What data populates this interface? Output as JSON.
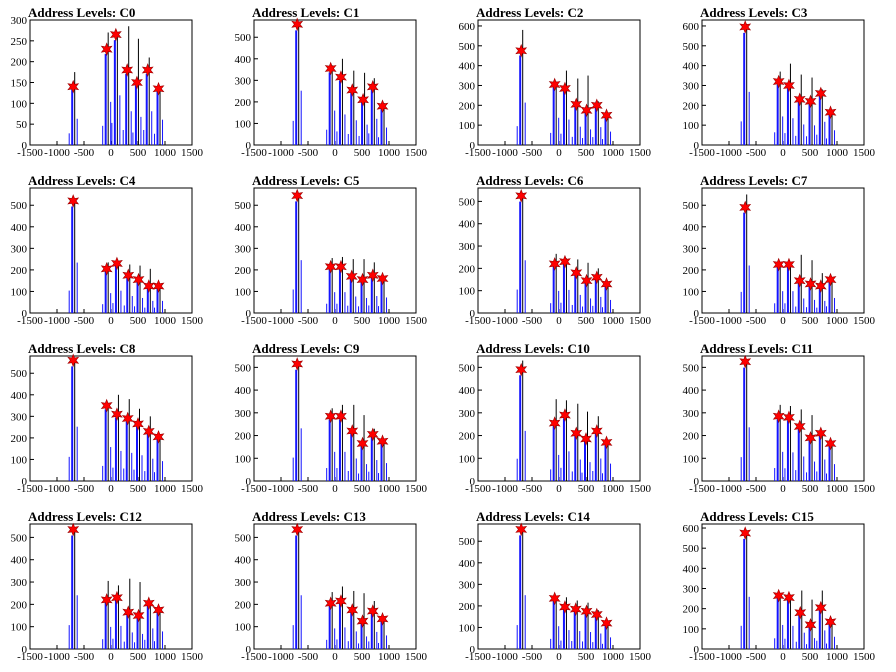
{
  "colors": {
    "histogram": "#1414ff",
    "peak_marker": "#ff0000",
    "frame": "#000000"
  },
  "chart_data": [
    {
      "type": "histogram",
      "title": "Address Levels: C0",
      "x_ticks": [
        -1500,
        -1000,
        -500,
        0,
        500,
        1000,
        1500
      ],
      "y_ticks": [
        0,
        50,
        100,
        150,
        200,
        250,
        300
      ],
      "xlim": [
        -1500,
        1500
      ],
      "ylim": [
        0,
        300
      ],
      "peaks": [
        {
          "x": -700,
          "y": 140,
          "h": 175
        },
        {
          "x": -80,
          "y": 230,
          "h": 270
        },
        {
          "x": 90,
          "y": 265,
          "h": 270
        },
        {
          "x": 300,
          "y": 180,
          "h": 285
        },
        {
          "x": 480,
          "y": 150,
          "h": 255
        },
        {
          "x": 680,
          "y": 180,
          "h": 210
        },
        {
          "x": 880,
          "y": 135,
          "h": 140
        }
      ]
    },
    {
      "type": "histogram",
      "title": "Address Levels: C1",
      "x_ticks": [
        -1500,
        -1000,
        -500,
        0,
        500,
        1000,
        1500
      ],
      "y_ticks": [
        0,
        100,
        200,
        300,
        400,
        500
      ],
      "xlim": [
        -1500,
        1500
      ],
      "ylim": [
        0,
        580
      ],
      "peaks": [
        {
          "x": -700,
          "y": 560,
          "h": 570
        },
        {
          "x": -80,
          "y": 355,
          "h": 370
        },
        {
          "x": 110,
          "y": 315,
          "h": 400
        },
        {
          "x": 320,
          "y": 255,
          "h": 345
        },
        {
          "x": 520,
          "y": 210,
          "h": 335
        },
        {
          "x": 700,
          "y": 270,
          "h": 310
        },
        {
          "x": 880,
          "y": 180,
          "h": 195
        }
      ]
    },
    {
      "type": "histogram",
      "title": "Address Levels: C2",
      "x_ticks": [
        -1500,
        -1000,
        -500,
        0,
        500,
        1000,
        1500
      ],
      "y_ticks": [
        0,
        100,
        200,
        300,
        400,
        500,
        600
      ],
      "xlim": [
        -1500,
        1500
      ],
      "ylim": [
        0,
        630
      ],
      "peaks": [
        {
          "x": -700,
          "y": 475,
          "h": 580
        },
        {
          "x": -80,
          "y": 305,
          "h": 320
        },
        {
          "x": 110,
          "y": 285,
          "h": 375
        },
        {
          "x": 320,
          "y": 205,
          "h": 335
        },
        {
          "x": 510,
          "y": 175,
          "h": 350
        },
        {
          "x": 700,
          "y": 200,
          "h": 220
        },
        {
          "x": 880,
          "y": 150,
          "h": 160
        }
      ]
    },
    {
      "type": "histogram",
      "title": "Address Levels: C3",
      "x_ticks": [
        -1500,
        -1000,
        -500,
        0,
        500,
        1000,
        1500
      ],
      "y_ticks": [
        0,
        100,
        200,
        300,
        400,
        500,
        600
      ],
      "xlim": [
        -1500,
        1500
      ],
      "ylim": [
        0,
        630
      ],
      "peaks": [
        {
          "x": -700,
          "y": 595,
          "h": 610
        },
        {
          "x": -80,
          "y": 320,
          "h": 370
        },
        {
          "x": 110,
          "y": 300,
          "h": 410
        },
        {
          "x": 310,
          "y": 230,
          "h": 355
        },
        {
          "x": 510,
          "y": 220,
          "h": 340
        },
        {
          "x": 700,
          "y": 260,
          "h": 280
        },
        {
          "x": 880,
          "y": 165,
          "h": 175
        }
      ]
    },
    {
      "type": "histogram",
      "title": "Address Levels: C4",
      "x_ticks": [
        -1500,
        -1000,
        -500,
        0,
        500,
        1000,
        1500
      ],
      "y_ticks": [
        0,
        100,
        200,
        300,
        400,
        500
      ],
      "xlim": [
        -1500,
        1500
      ],
      "ylim": [
        0,
        580
      ],
      "peaks": [
        {
          "x": -700,
          "y": 520,
          "h": 525
        },
        {
          "x": -80,
          "y": 205,
          "h": 235
        },
        {
          "x": 110,
          "y": 230,
          "h": 235
        },
        {
          "x": 320,
          "y": 175,
          "h": 225
        },
        {
          "x": 510,
          "y": 155,
          "h": 220
        },
        {
          "x": 700,
          "y": 125,
          "h": 205
        },
        {
          "x": 880,
          "y": 125,
          "h": 130
        }
      ]
    },
    {
      "type": "histogram",
      "title": "Address Levels: C5",
      "x_ticks": [
        -1500,
        -1000,
        -500,
        0,
        500,
        1000,
        1500
      ],
      "y_ticks": [
        0,
        100,
        200,
        300,
        400,
        500
      ],
      "xlim": [
        -1500,
        1500
      ],
      "ylim": [
        0,
        580
      ],
      "peaks": [
        {
          "x": -700,
          "y": 545,
          "h": 550
        },
        {
          "x": -80,
          "y": 215,
          "h": 255
        },
        {
          "x": 110,
          "y": 215,
          "h": 260
        },
        {
          "x": 310,
          "y": 170,
          "h": 250
        },
        {
          "x": 510,
          "y": 155,
          "h": 250
        },
        {
          "x": 700,
          "y": 175,
          "h": 235
        },
        {
          "x": 880,
          "y": 160,
          "h": 165
        }
      ]
    },
    {
      "type": "histogram",
      "title": "Address Levels: C6",
      "x_ticks": [
        -1500,
        -1000,
        -500,
        0,
        500,
        1000,
        1500
      ],
      "y_ticks": [
        0,
        100,
        200,
        300,
        400,
        500
      ],
      "xlim": [
        -1500,
        1500
      ],
      "ylim": [
        0,
        560
      ],
      "peaks": [
        {
          "x": -700,
          "y": 525,
          "h": 530
        },
        {
          "x": -80,
          "y": 220,
          "h": 265
        },
        {
          "x": 110,
          "y": 230,
          "h": 245
        },
        {
          "x": 320,
          "y": 180,
          "h": 240
        },
        {
          "x": 510,
          "y": 145,
          "h": 225
        },
        {
          "x": 700,
          "y": 160,
          "h": 200
        },
        {
          "x": 880,
          "y": 130,
          "h": 135
        }
      ]
    },
    {
      "type": "histogram",
      "title": "Address Levels: C7",
      "x_ticks": [
        -1500,
        -1000,
        -500,
        0,
        500,
        1000,
        1500
      ],
      "y_ticks": [
        0,
        100,
        200,
        300,
        400,
        500
      ],
      "xlim": [
        -1500,
        1500
      ],
      "ylim": [
        0,
        580
      ],
      "peaks": [
        {
          "x": -700,
          "y": 490,
          "h": 550
        },
        {
          "x": -80,
          "y": 225,
          "h": 235
        },
        {
          "x": 110,
          "y": 225,
          "h": 230
        },
        {
          "x": 310,
          "y": 150,
          "h": 270
        },
        {
          "x": 510,
          "y": 135,
          "h": 245
        },
        {
          "x": 700,
          "y": 125,
          "h": 185
        },
        {
          "x": 880,
          "y": 155,
          "h": 160
        }
      ]
    },
    {
      "type": "histogram",
      "title": "Address Levels: C8",
      "x_ticks": [
        -1500,
        -1000,
        -500,
        0,
        500,
        1000,
        1500
      ],
      "y_ticks": [
        0,
        100,
        200,
        300,
        400,
        500
      ],
      "xlim": [
        -1500,
        1500
      ],
      "ylim": [
        0,
        580
      ],
      "peaks": [
        {
          "x": -700,
          "y": 560,
          "h": 565
        },
        {
          "x": -80,
          "y": 350,
          "h": 360
        },
        {
          "x": 110,
          "y": 310,
          "h": 400
        },
        {
          "x": 310,
          "y": 290,
          "h": 380
        },
        {
          "x": 500,
          "y": 265,
          "h": 335
        },
        {
          "x": 700,
          "y": 230,
          "h": 300
        },
        {
          "x": 880,
          "y": 205,
          "h": 210
        }
      ]
    },
    {
      "type": "histogram",
      "title": "Address Levels: C9",
      "x_ticks": [
        -1500,
        -1000,
        -500,
        0,
        500,
        1000,
        1500
      ],
      "y_ticks": [
        0,
        100,
        200,
        300,
        400,
        500
      ],
      "xlim": [
        -1500,
        1500
      ],
      "ylim": [
        0,
        550
      ],
      "peaks": [
        {
          "x": -700,
          "y": 515,
          "h": 520
        },
        {
          "x": -80,
          "y": 285,
          "h": 320
        },
        {
          "x": 110,
          "y": 285,
          "h": 335
        },
        {
          "x": 320,
          "y": 220,
          "h": 335
        },
        {
          "x": 510,
          "y": 165,
          "h": 290
        },
        {
          "x": 700,
          "y": 205,
          "h": 230
        },
        {
          "x": 880,
          "y": 175,
          "h": 180
        }
      ]
    },
    {
      "type": "histogram",
      "title": "Address Levels: C10",
      "x_ticks": [
        -1500,
        -1000,
        -500,
        0,
        500,
        1000,
        1500
      ],
      "y_ticks": [
        0,
        100,
        200,
        300,
        400,
        500
      ],
      "xlim": [
        -1500,
        1500
      ],
      "ylim": [
        0,
        550
      ],
      "peaks": [
        {
          "x": -700,
          "y": 490,
          "h": 530
        },
        {
          "x": -80,
          "y": 255,
          "h": 360
        },
        {
          "x": 110,
          "y": 290,
          "h": 355
        },
        {
          "x": 320,
          "y": 210,
          "h": 340
        },
        {
          "x": 500,
          "y": 185,
          "h": 305
        },
        {
          "x": 700,
          "y": 220,
          "h": 285
        },
        {
          "x": 880,
          "y": 170,
          "h": 175
        }
      ]
    },
    {
      "type": "histogram",
      "title": "Address Levels: C11",
      "x_ticks": [
        -1500,
        -1000,
        -500,
        0,
        500,
        1000,
        1500
      ],
      "y_ticks": [
        0,
        100,
        200,
        300,
        400,
        500
      ],
      "xlim": [
        -1500,
        1500
      ],
      "ylim": [
        0,
        550
      ],
      "peaks": [
        {
          "x": -700,
          "y": 525,
          "h": 530
        },
        {
          "x": -80,
          "y": 285,
          "h": 335
        },
        {
          "x": 110,
          "y": 280,
          "h": 330
        },
        {
          "x": 310,
          "y": 240,
          "h": 315
        },
        {
          "x": 510,
          "y": 190,
          "h": 290
        },
        {
          "x": 700,
          "y": 210,
          "h": 215
        },
        {
          "x": 880,
          "y": 165,
          "h": 170
        }
      ]
    },
    {
      "type": "histogram",
      "title": "Address Levels: C12",
      "x_ticks": [
        -1500,
        -1000,
        -500,
        0,
        500,
        1000,
        1500
      ],
      "y_ticks": [
        0,
        100,
        200,
        300,
        400,
        500
      ],
      "xlim": [
        -1500,
        1500
      ],
      "ylim": [
        0,
        560
      ],
      "peaks": [
        {
          "x": -700,
          "y": 535,
          "h": 540
        },
        {
          "x": -80,
          "y": 220,
          "h": 305
        },
        {
          "x": 110,
          "y": 230,
          "h": 285
        },
        {
          "x": 320,
          "y": 165,
          "h": 315
        },
        {
          "x": 510,
          "y": 150,
          "h": 300
        },
        {
          "x": 700,
          "y": 205,
          "h": 215
        },
        {
          "x": 880,
          "y": 175,
          "h": 180
        }
      ]
    },
    {
      "type": "histogram",
      "title": "Address Levels: C13",
      "x_ticks": [
        -1500,
        -1000,
        -500,
        0,
        500,
        1000,
        1500
      ],
      "y_ticks": [
        0,
        100,
        200,
        300,
        400,
        500
      ],
      "xlim": [
        -1500,
        1500
      ],
      "ylim": [
        0,
        560
      ],
      "peaks": [
        {
          "x": -700,
          "y": 535,
          "h": 540
        },
        {
          "x": -80,
          "y": 205,
          "h": 255
        },
        {
          "x": 110,
          "y": 215,
          "h": 280
        },
        {
          "x": 320,
          "y": 175,
          "h": 260
        },
        {
          "x": 510,
          "y": 125,
          "h": 250
        },
        {
          "x": 700,
          "y": 170,
          "h": 215
        },
        {
          "x": 880,
          "y": 135,
          "h": 140
        }
      ]
    },
    {
      "type": "histogram",
      "title": "Address Levels: C14",
      "x_ticks": [
        -1500,
        -1000,
        -500,
        0,
        500,
        1000,
        1500
      ],
      "y_ticks": [
        0,
        100,
        200,
        300,
        400,
        500
      ],
      "xlim": [
        -1500,
        1500
      ],
      "ylim": [
        0,
        580
      ],
      "peaks": [
        {
          "x": -700,
          "y": 555,
          "h": 560
        },
        {
          "x": -80,
          "y": 235,
          "h": 245
        },
        {
          "x": 110,
          "y": 195,
          "h": 240
        },
        {
          "x": 310,
          "y": 185,
          "h": 225
        },
        {
          "x": 510,
          "y": 175,
          "h": 215
        },
        {
          "x": 700,
          "y": 160,
          "h": 180
        },
        {
          "x": 880,
          "y": 120,
          "h": 125
        }
      ]
    },
    {
      "type": "histogram",
      "title": "Address Levels: C15",
      "x_ticks": [
        -1500,
        -1000,
        -500,
        0,
        500,
        1000,
        1500
      ],
      "y_ticks": [
        0,
        100,
        200,
        300,
        400,
        500,
        600
      ],
      "xlim": [
        -1500,
        1500
      ],
      "ylim": [
        0,
        620
      ],
      "peaks": [
        {
          "x": -700,
          "y": 575,
          "h": 580
        },
        {
          "x": -80,
          "y": 265,
          "h": 275
        },
        {
          "x": 110,
          "y": 255,
          "h": 270
        },
        {
          "x": 320,
          "y": 180,
          "h": 290
        },
        {
          "x": 510,
          "y": 120,
          "h": 245
        },
        {
          "x": 700,
          "y": 205,
          "h": 290
        },
        {
          "x": 880,
          "y": 135,
          "h": 140
        }
      ]
    }
  ]
}
